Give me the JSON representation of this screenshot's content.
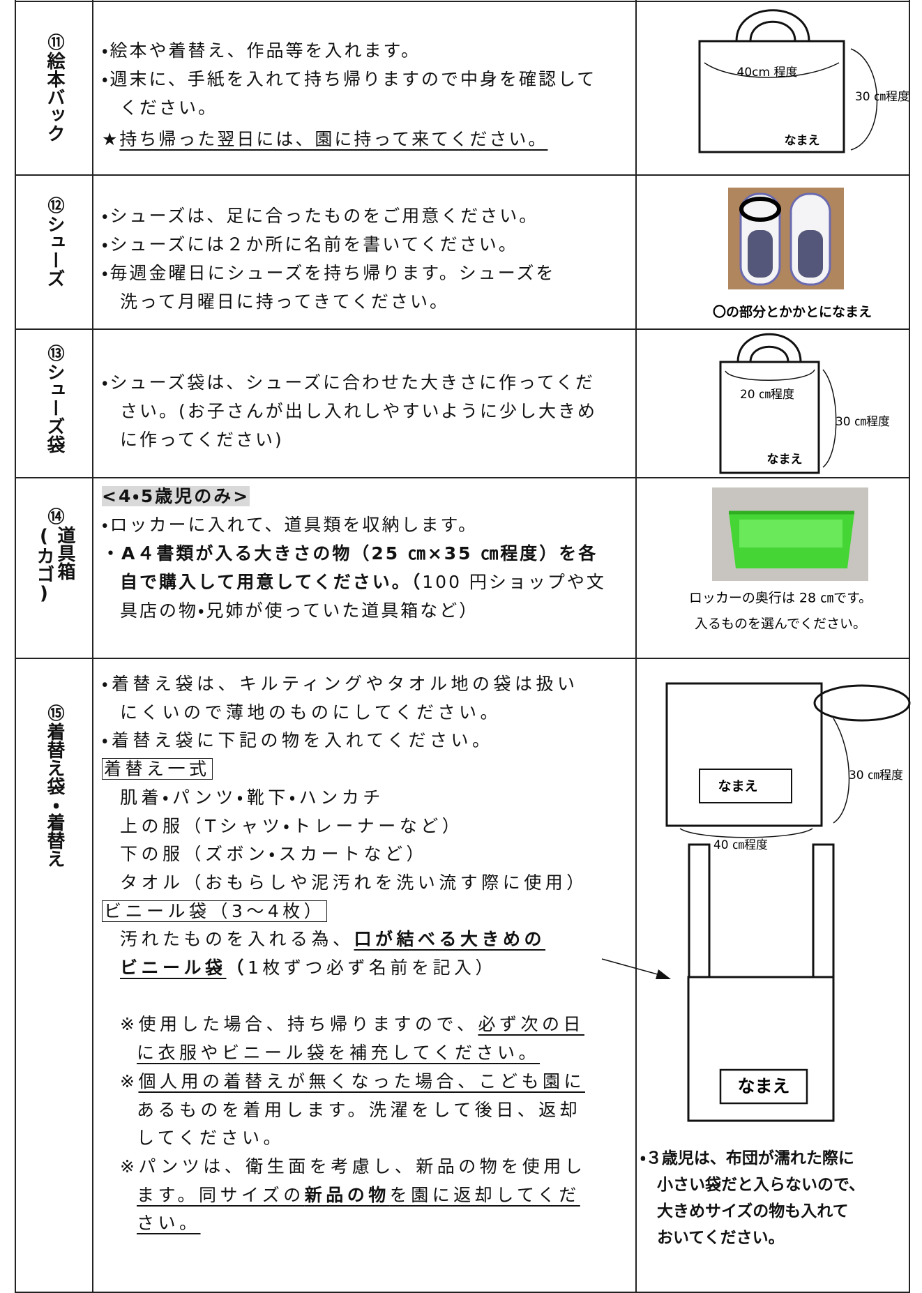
{
  "rows": [
    {
      "number": "⑪",
      "label": [
        "絵本バック"
      ],
      "lines": [
        [
          "・絵本や着替え、作品等を入れます。"
        ],
        [
          "・週末に、手紙を入れて持ち帰りますので中身を確認して"
        ],
        [
          "ください。"
        ],
        [
          "★",
          "持ち帰った翌日には、園に持って来てください。"
        ]
      ],
      "figure": [
        "40cm 程度",
        "30 ㎝程度",
        "なまえ"
      ]
    },
    {
      "number": "⑫",
      "label": [
        "シューズ"
      ],
      "lines": [
        [
          "・シューズは、足に合ったものをご用意ください。"
        ],
        [
          "・シューズには２か所に名前を書いてください。"
        ],
        [
          "・毎週金曜日にシューズを持ち帰ります。シューズを"
        ],
        [
          "洗って月曜日に持ってきてください。"
        ]
      ],
      "figure": [
        "〇の部分とかかとになまえ"
      ]
    },
    {
      "number": "⑬",
      "label": [
        "シューズ袋"
      ],
      "lines": [
        [
          "・シューズ袋は、シューズに合わせた大きさに作ってくだ"
        ],
        [
          "さい。(お子さんが出し入れしやすいように少し大きめ"
        ],
        [
          "に作ってください)"
        ]
      ],
      "figure": [
        "20 ㎝程度",
        "30 ㎝程度",
        "なまえ"
      ]
    },
    {
      "number": "⑭",
      "label": [
        "道具箱",
        "(カゴ)"
      ],
      "lines": [
        [
          "<4・5歳児のみ>"
        ],
        [
          "・ロッカーに入れて、道具類を収納します。"
        ],
        [
          "・A４書類が入る大きさの物（25 ㎝×35 ㎝程度）を各"
        ],
        [
          "自で購入して用意してください。（",
          "100 円ショップや文"
        ],
        [
          "具店の物・兄姉が使っていた道具箱など）"
        ]
      ],
      "figure": [
        "ロッカーの奥行は 28 ㎝です。",
        "入るものを選んでください。"
      ]
    },
    {
      "number": "⑮",
      "label": [
        "着替え袋・着替え"
      ],
      "lines": [
        [
          "・着替え袋は、キルティングやタオル地の袋は扱い"
        ],
        [
          "にくいので薄地のものにしてください。"
        ],
        [
          "・着替え袋に下記の物を入れてください。"
        ],
        [
          "着替え一式"
        ],
        [
          "肌着・パンツ・靴下・ハンカチ"
        ],
        [
          "上の服（Tシャツ・トレーナーなど）"
        ],
        [
          "下の服（ズボン・スカートなど）"
        ],
        [
          "タオル（おもらしや泥汚れを洗い流す際に使用）"
        ],
        [
          "ビニール袋（3～4枚）"
        ],
        [
          "汚れたものを入れる為、",
          "口が結べる大きめの"
        ],
        [
          "ビニール袋",
          "（",
          "1枚ずつ必ず名前を記入）"
        ],
        [
          "※使用した場合、持ち帰りますので、",
          "必ず次の日"
        ],
        [
          "に衣服やビニール袋を補充してください。"
        ],
        [
          "※",
          "個人用の着替えが無くなった場合、こども園に"
        ],
        [
          "あるものを着用します。洗濯をして後日、返却"
        ],
        [
          "してください。"
        ],
        [
          "※パンツは、衛生面を考慮し、新品の物を使用し"
        ],
        [
          "ます。同サイズの",
          "新品の物",
          "を園に返却してくだ"
        ],
        [
          "さい。"
        ]
      ],
      "figure": [
        "なまえ",
        "30 ㎝程度",
        "40 ㎝程度",
        "なまえ"
      ],
      "note": [
        "・３歳児は、布団が濡れた際に",
        "小さい袋だと入らないので、",
        "大きめサイズの物も入れて",
        "おいてください。"
      ]
    }
  ]
}
